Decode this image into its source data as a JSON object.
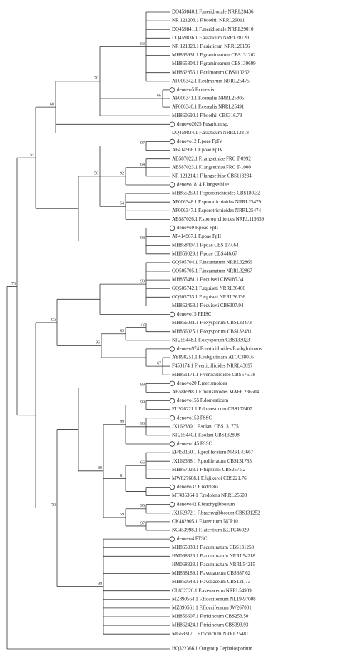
{
  "tree": {
    "leaves": [
      "DQ459840.1 F.meridionale NRRL28436",
      "NR 121203.1 F.boothii NRRL29011",
      "DQ459841.1 F.meridionale NRRL29010",
      "DQ459836.1 F.asiaticum NRRL28720",
      "NR 121320.1 F.asiaticum NRRL26156",
      "MH865931.1 F.graminearum CBS131262",
      "MH865804.1 F.graminearum CBS130609",
      "MH862856.1 F.culmorum CBS110262",
      "AF006342.1 F.culmorum NRRL25475",
      "denovo5 F.cerealis",
      "AF006341.1 F.cerealis NRRL25805",
      "AF006340.1 F.cerealis NRRL25491",
      "MH860690.1 F.boothii CBS316.73",
      "denovo2025 Fusarium sp.",
      "DQ459834.1 F.asiaticum NRRL13818",
      "denovo12 F.poae FpIV",
      "AF414966.1 F.poae FpIV",
      "AB587022.1 F.langsethiae FRC T-0992",
      "AB587023.1 F.langsethiae FRC T-1000",
      "NR 121214.1 F.langsethiae CBS113234",
      "denovo1814 F.langsethiae",
      "MH855269.1 F.sporotrichioides CBS180.32",
      "AF006348.1 F.sporotrichioides NRRL25479",
      "AF006347.1 F.sporotrichioides NRRL25474",
      "AB587026.1 F.sporotrichioides NRRL119839",
      "denovo9 F.poae FpII",
      "AF414967.1 F.poae FpII",
      "MH858407.1 F.poae CBS 177.64",
      "MH859029.1 F.poae CBS446.67",
      "GQ505704.1 F.incarnatum NRRL32866",
      "GQ505705.1 F.incarnatum NRRL32867",
      "MH855481.1 F.equiseti CBS185.34",
      "GQ505742.1 F.equiseti NRRL36466",
      "GQ505733.1 F.equiseti NRRL36136",
      "MH862468.1 F.equiseti CBS307.94",
      "denovo15 FEISC",
      "MH866031.1 F.oxysporum CBS132473",
      "MH866025.1 F.oxysporum CBS132481",
      "KF255448.1 F.oxysporum CBS133023",
      "denovo974 F.verticillioides/F.subglutinans",
      "AY898251.1 F.subglutinans ATCC38016",
      "F453174.1 F.verticillioides NRRL43697",
      "MH861171.1 F.verticillioides CBS576.78",
      "denovo20 F.merismoides",
      "AB586998.1 F.merismoides MAFF 236504",
      "denovo155 F.domesticum",
      "EU926221.1 F.domesticum CBS102407",
      "denovo153 FSSC",
      "JX162380.1 F.solani CBS131775",
      "KF255440.1 F.solani CBS132898",
      "denovo145 FSSC",
      "EF453150.1 F.proliferatum NRRL43667",
      "JX162388.1 F.proliferatum CBS131785",
      "MH857023.1 F.fujikuroi CBS257.52",
      "MW827608.1 F.fujikuroi CBS221.76",
      "denovo37 F.redolens",
      "MT435364.1 F.redolens NRRL25600",
      "denovo42 F.brachygibbosum",
      "JX162372.1 F.brachygibbosum CBS131252",
      "OK482905.1 F.lateritium NCP10",
      "KC453998.1 F.lateritium KCTC46029",
      "denovo4 FTSC",
      "MH865933.1 F.acuminatum CBS131258",
      "HM068326.1 F.acuminatum NRRL54218",
      "HM068323.1 F.acuminatum NRRL54215",
      "MH858189.1 F.avenaceum CBS387.62",
      "MH860648.1 F.avenaceum CBS121.73",
      "OL832320.1 F.avenaceum NRRL54939",
      "MZ890564.1 F.floccifernum NL19-97008",
      "MZ890561.1 F.floccifernum JW267001",
      "MH856607.1 F.tricinctum CBS253.50",
      "MH862424.1 F.tricinctum CBS393.93",
      "MG68317.1 F.tricinctum NRRL25481",
      "HQ322366.1 Outgroup Cephalosporium"
    ],
    "support": [
      63,
      66,
      70,
      60,
      97,
      64,
      92,
      56,
      54,
      53,
      73,
      98,
      99,
      72,
      65,
      67,
      96,
      65,
      99,
      99,
      99,
      90,
      89,
      66,
      81,
      70,
      95,
      59,
      97,
      99
    ]
  }
}
